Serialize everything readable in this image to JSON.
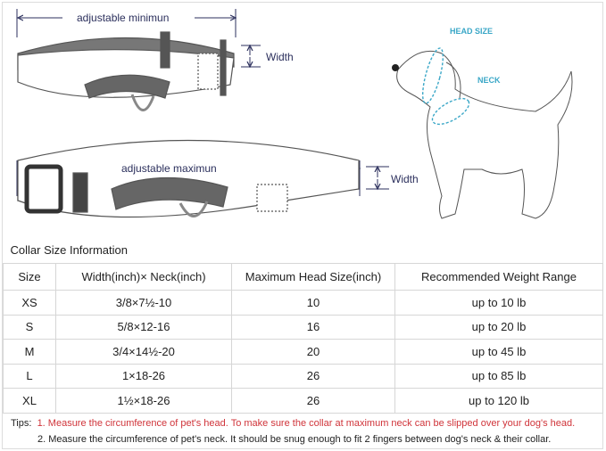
{
  "diagram": {
    "min_label": "adjustable minimun",
    "max_label": "adjustable maximun",
    "width_label_top": "Width",
    "width_label_bottom": "Width",
    "head_size_label": "HEAD SIZE",
    "neck_label": "NECK",
    "accent_color": "#3aa7c7",
    "arrow_color": "#2b2f5c"
  },
  "table": {
    "title": "Collar Size Information",
    "headers": [
      "Size",
      "Width(inch)× Neck(inch)",
      "Maximum Head Size(inch)",
      "Recommended Weight Range"
    ],
    "rows": [
      [
        "XS",
        "3/8×7½-10",
        "10",
        "up to 10 lb"
      ],
      [
        "S",
        "5/8×12-16",
        "16",
        "up to 20 lb"
      ],
      [
        "M",
        "3/4×14½-20",
        "20",
        "up to 45 lb"
      ],
      [
        "L",
        "1×18-26",
        "26",
        "up to 85 lb"
      ],
      [
        "XL",
        "1½×18-26",
        "26",
        "up to 120 lb"
      ]
    ]
  },
  "tips": {
    "label": "Tips:",
    "tip1": "1. Measure the circumference of pet's head.  To make sure the collar at maximum neck can be slipped over your dog's head.",
    "tip2": "2. Measure the circumference of pet's neck. It should be snug enough to fit 2 fingers between dog's neck & their collar.",
    "tip1_color": "#d0343a"
  }
}
